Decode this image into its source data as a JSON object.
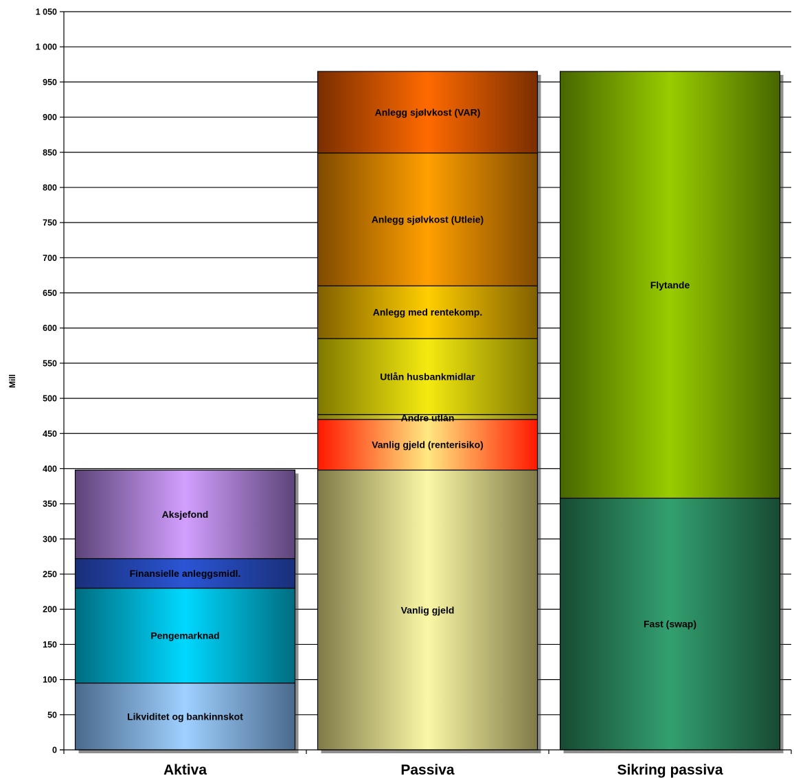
{
  "chart_data": {
    "type": "bar",
    "stacked": true,
    "ylabel": "Mill",
    "ylim": [
      0,
      1050
    ],
    "ytick_step": 50,
    "yticks": [
      "0",
      "50",
      "100",
      "150",
      "200",
      "250",
      "300",
      "350",
      "400",
      "450",
      "500",
      "550",
      "600",
      "650",
      "700",
      "750",
      "800",
      "850",
      "900",
      "950",
      "1 000",
      "1 050"
    ],
    "grid": true,
    "categories": [
      "Aktiva",
      "Passiva",
      "Sikring passiva"
    ],
    "stacks": [
      {
        "category": "Aktiva",
        "segments": [
          {
            "label": "Likviditet og bankinnskot",
            "value": 95,
            "color": "#7fb2e6",
            "light": "#9fd0ff",
            "dark": "#4a6a8c"
          },
          {
            "label": "Pengemarknad",
            "value": 135,
            "color": "#00c0e6",
            "light": "#00d8ff",
            "dark": "#006c80"
          },
          {
            "label": "Finansielle  anleggsmidl.",
            "value": 42,
            "color": "#2346b8",
            "light": "#2a55d4",
            "dark": "#1a2f7a"
          },
          {
            "label": "Aksjefond",
            "value": 126,
            "color": "#b48ae0",
            "light": "#d29fff",
            "dark": "#5c4478"
          }
        ]
      },
      {
        "category": "Passiva",
        "segments": [
          {
            "label": "Vanlig gjeld",
            "value": 398,
            "color": "#e6e08a",
            "light": "#faf8a6",
            "dark": "#807a48"
          },
          {
            "label": "Vanlig gjeld (renterisiko)",
            "value": 72,
            "color": "#ff4a20",
            "light": "#ffe880",
            "dark": "#ff1800"
          },
          {
            "label": "Andre utlån",
            "value": 7,
            "color": "#d8d030",
            "light": "#f4ee40",
            "dark": "#807a10"
          },
          {
            "label": "Utlån husbankmidlar",
            "value": 108,
            "color": "#d8cf10",
            "light": "#f4ea10",
            "dark": "#807800"
          },
          {
            "label": "Anlegg med rentekomp.",
            "value": 75,
            "color": "#e6b400",
            "light": "#ffce00",
            "dark": "#806000"
          },
          {
            "label": "Anlegg sjølvkost (Utleie)",
            "value": 189,
            "color": "#f08c10",
            "light": "#ffa000",
            "dark": "#804a00"
          },
          {
            "label": "Anlegg sjølvkost (VAR)",
            "value": 116,
            "color": "#f06010",
            "light": "#ff6a00",
            "dark": "#7a2e00"
          }
        ]
      },
      {
        "category": "Sikring passiva",
        "segments": [
          {
            "label": "Fast (swap)",
            "value": 358,
            "color": "#2e9464",
            "light": "#33a070",
            "dark": "#174a32"
          },
          {
            "label": "Flytande",
            "value": 607,
            "color": "#8cc000",
            "light": "#99cc00",
            "dark": "#476600"
          }
        ]
      }
    ],
    "label_offsets": {
      "Andre utlån": 1.0
    }
  }
}
